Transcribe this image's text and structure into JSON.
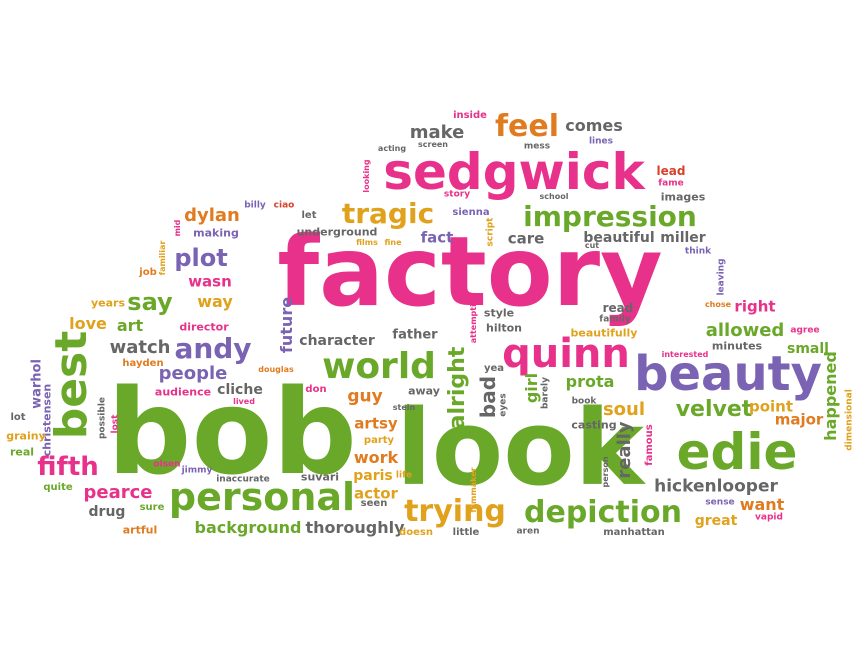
{
  "palette": {
    "pink": "#e8318a",
    "green": "#6aa82a",
    "purple": "#7a63b3",
    "orange": "#e07b1f",
    "gold": "#e0a21c",
    "gray": "#666666",
    "red": "#d9402b"
  },
  "words": [
    {
      "text": "factory",
      "color": "pink"
    },
    {
      "text": "bob",
      "color": "green"
    },
    {
      "text": "look",
      "color": "green"
    },
    {
      "text": "sedgwick",
      "color": "pink"
    },
    {
      "text": "beauty",
      "color": "purple"
    },
    {
      "text": "edie",
      "color": "green"
    },
    {
      "text": "quinn",
      "color": "pink"
    },
    {
      "text": "best",
      "color": "green"
    },
    {
      "text": "personal",
      "color": "green"
    },
    {
      "text": "world",
      "color": "green"
    },
    {
      "text": "impression",
      "color": "green"
    },
    {
      "text": "depiction",
      "color": "green"
    },
    {
      "text": "tragic",
      "color": "gold"
    },
    {
      "text": "feel",
      "color": "orange"
    },
    {
      "text": "trying",
      "color": "gold"
    },
    {
      "text": "andy",
      "color": "purple"
    },
    {
      "text": "fifth",
      "color": "pink"
    },
    {
      "text": "say",
      "color": "green"
    },
    {
      "text": "plot",
      "color": "purple"
    },
    {
      "text": "velvet",
      "color": "green"
    },
    {
      "text": "alright",
      "color": "green"
    },
    {
      "text": "hickenlooper",
      "color": "gray"
    },
    {
      "text": "pearce",
      "color": "pink"
    },
    {
      "text": "background",
      "color": "green"
    },
    {
      "text": "thoroughly",
      "color": "gray"
    },
    {
      "text": "people",
      "color": "purple"
    },
    {
      "text": "watch",
      "color": "gray"
    },
    {
      "text": "make",
      "color": "gray"
    },
    {
      "text": "comes",
      "color": "gray"
    },
    {
      "text": "dylan",
      "color": "orange"
    },
    {
      "text": "art",
      "color": "green"
    },
    {
      "text": "love",
      "color": "gold"
    },
    {
      "text": "way",
      "color": "gold"
    },
    {
      "text": "wasn",
      "color": "pink"
    },
    {
      "text": "fact",
      "color": "purple"
    },
    {
      "text": "care",
      "color": "gray"
    },
    {
      "text": "beautiful",
      "color": "gray"
    },
    {
      "text": "miller",
      "color": "gray"
    },
    {
      "text": "allowed",
      "color": "green"
    },
    {
      "text": "right",
      "color": "pink"
    },
    {
      "text": "soul",
      "color": "gold"
    },
    {
      "text": "prota",
      "color": "green"
    },
    {
      "text": "guy",
      "color": "orange"
    },
    {
      "text": "work",
      "color": "orange"
    },
    {
      "text": "artsy",
      "color": "orange"
    },
    {
      "text": "paris",
      "color": "gold"
    },
    {
      "text": "actor",
      "color": "gold"
    },
    {
      "text": "bad",
      "color": "gray"
    },
    {
      "text": "girl",
      "color": "green"
    },
    {
      "text": "really",
      "color": "gray"
    },
    {
      "text": "point",
      "color": "gold"
    },
    {
      "text": "major",
      "color": "orange"
    },
    {
      "text": "want",
      "color": "orange"
    },
    {
      "text": "great",
      "color": "gold"
    },
    {
      "text": "small",
      "color": "green"
    },
    {
      "text": "happened",
      "color": "green"
    },
    {
      "text": "future",
      "color": "purple"
    },
    {
      "text": "character",
      "color": "gray"
    },
    {
      "text": "father",
      "color": "gray"
    },
    {
      "text": "drug",
      "color": "gray"
    },
    {
      "text": "cliche",
      "color": "gray"
    },
    {
      "text": "director",
      "color": "pink"
    },
    {
      "text": "hayden",
      "color": "orange"
    },
    {
      "text": "audience",
      "color": "pink"
    },
    {
      "text": "years",
      "color": "gold"
    },
    {
      "text": "job",
      "color": "orange"
    },
    {
      "text": "warhol",
      "color": "purple"
    },
    {
      "text": "christensen",
      "color": "purple"
    },
    {
      "text": "grainy",
      "color": "gold"
    },
    {
      "text": "real",
      "color": "green"
    },
    {
      "text": "quite",
      "color": "green"
    },
    {
      "text": "lot",
      "color": "gray"
    },
    {
      "text": "artful",
      "color": "orange"
    },
    {
      "text": "sure",
      "color": "green"
    },
    {
      "text": "olsen",
      "color": "pink"
    },
    {
      "text": "jimmy",
      "color": "purple"
    },
    {
      "text": "inaccurate",
      "color": "gray"
    },
    {
      "text": "suvari",
      "color": "gray"
    },
    {
      "text": "life",
      "color": "gold"
    },
    {
      "text": "seen",
      "color": "gray"
    },
    {
      "text": "doesn",
      "color": "gold"
    },
    {
      "text": "little",
      "color": "gray"
    },
    {
      "text": "aren",
      "color": "gray"
    },
    {
      "text": "manhattan",
      "color": "gray"
    },
    {
      "text": "vapid",
      "color": "pink"
    },
    {
      "text": "sense",
      "color": "purple"
    },
    {
      "text": "famous",
      "color": "pink"
    },
    {
      "text": "person",
      "color": "gray"
    },
    {
      "text": "casting",
      "color": "gray"
    },
    {
      "text": "book",
      "color": "gray"
    },
    {
      "text": "barely",
      "color": "gray"
    },
    {
      "text": "yea",
      "color": "gray"
    },
    {
      "text": "eyes",
      "color": "gray"
    },
    {
      "text": "filmmaker",
      "color": "gold"
    },
    {
      "text": "stein",
      "color": "gray"
    },
    {
      "text": "party",
      "color": "gold"
    },
    {
      "text": "don",
      "color": "pink"
    },
    {
      "text": "away",
      "color": "gray"
    },
    {
      "text": "lived",
      "color": "pink"
    },
    {
      "text": "douglas",
      "color": "orange"
    },
    {
      "text": "hilton",
      "color": "gray"
    },
    {
      "text": "attempting",
      "color": "pink"
    },
    {
      "text": "style",
      "color": "gray"
    },
    {
      "text": "read",
      "color": "gray"
    },
    {
      "text": "family",
      "color": "gray"
    },
    {
      "text": "beautifully",
      "color": "gold"
    },
    {
      "text": "interested",
      "color": "pink"
    },
    {
      "text": "minutes",
      "color": "gray"
    },
    {
      "text": "chose",
      "color": "orange"
    },
    {
      "text": "leaving",
      "color": "purple"
    },
    {
      "text": "agree",
      "color": "pink"
    },
    {
      "text": "dimensional",
      "color": "gold"
    },
    {
      "text": "think",
      "color": "purple"
    },
    {
      "text": "cut",
      "color": "gray"
    },
    {
      "text": "fame",
      "color": "pink"
    },
    {
      "text": "images",
      "color": "gray"
    },
    {
      "text": "lead",
      "color": "red"
    },
    {
      "text": "school",
      "color": "gray"
    },
    {
      "text": "story",
      "color": "pink"
    },
    {
      "text": "sienna",
      "color": "purple"
    },
    {
      "text": "script",
      "color": "gold"
    },
    {
      "text": "films",
      "color": "gold"
    },
    {
      "text": "fine",
      "color": "gold"
    },
    {
      "text": "underground",
      "color": "gray"
    },
    {
      "text": "let",
      "color": "gray"
    },
    {
      "text": "billy",
      "color": "purple"
    },
    {
      "text": "ciao",
      "color": "red"
    },
    {
      "text": "making",
      "color": "purple"
    },
    {
      "text": "mid",
      "color": "pink"
    },
    {
      "text": "familiar",
      "color": "gold"
    },
    {
      "text": "acting",
      "color": "gray"
    },
    {
      "text": "looking",
      "color": "pink"
    },
    {
      "text": "screen",
      "color": "gray"
    },
    {
      "text": "inside",
      "color": "pink"
    },
    {
      "text": "mess",
      "color": "gray"
    },
    {
      "text": "lines",
      "color": "purple"
    },
    {
      "text": "possible",
      "color": "gray"
    },
    {
      "text": "lost",
      "color": "pink"
    }
  ]
}
